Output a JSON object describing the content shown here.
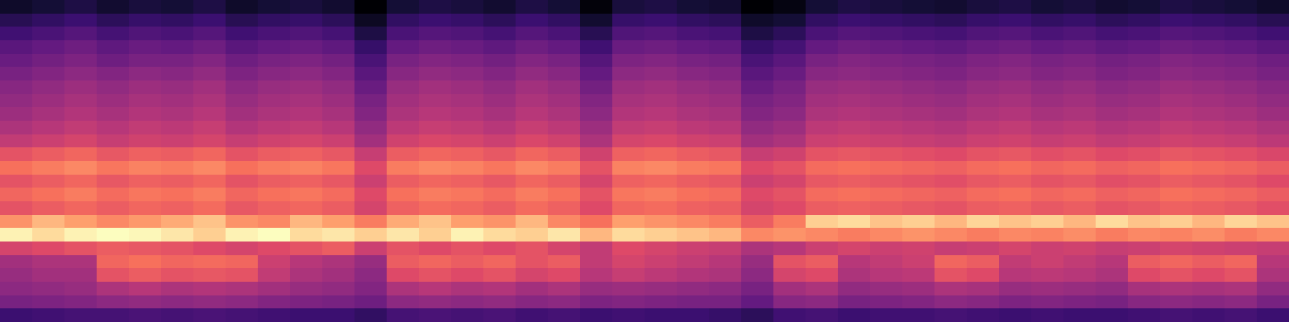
{
  "chart_data": {
    "type": "heatmap",
    "tick_labels": false,
    "cells": [
      [
        28,
        29,
        30,
        30,
        31,
        30,
        31,
        30,
        29,
        28,
        28,
        26,
        30,
        31,
        30,
        31,
        29,
        30,
        28,
        29,
        28,
        28,
        27,
        25,
        29,
        30,
        28,
        29,
        29,
        30,
        29,
        28,
        29,
        28,
        28,
        29,
        30,
        29,
        30,
        28
      ],
      [
        40,
        41,
        42,
        44,
        45,
        44,
        45,
        44,
        42,
        41,
        40,
        38,
        44,
        45,
        44,
        45,
        43,
        44,
        41,
        42,
        41,
        40,
        40,
        36,
        43,
        44,
        40,
        41,
        42,
        44,
        43,
        41,
        42,
        41,
        40,
        43,
        44,
        43,
        44,
        40
      ],
      [
        44,
        45,
        46,
        50,
        52,
        50,
        51,
        50,
        48,
        46,
        45,
        42,
        50,
        52,
        50,
        51,
        48,
        50,
        46,
        47,
        46,
        45,
        44,
        40,
        48,
        50,
        45,
        46,
        47,
        50,
        49,
        46,
        47,
        46,
        45,
        49,
        50,
        49,
        50,
        45
      ],
      [
        46,
        48,
        48,
        62,
        64,
        62,
        63,
        62,
        54,
        50,
        48,
        44,
        60,
        62,
        60,
        62,
        58,
        60,
        52,
        55,
        53,
        51,
        50,
        44,
        58,
        60,
        50,
        52,
        53,
        62,
        60,
        52,
        53,
        52,
        50,
        60,
        62,
        60,
        62,
        50
      ],
      [
        48,
        50,
        50,
        66,
        68,
        66,
        67,
        66,
        56,
        52,
        50,
        46,
        64,
        66,
        64,
        66,
        62,
        64,
        54,
        58,
        56,
        54,
        52,
        46,
        62,
        64,
        52,
        54,
        56,
        66,
        64,
        54,
        56,
        54,
        52,
        64,
        66,
        64,
        66,
        52
      ],
      [
        58,
        60,
        62,
        64,
        63,
        62,
        60,
        58,
        60,
        62,
        64,
        56,
        62,
        60,
        62,
        60,
        62,
        58,
        54,
        60,
        58,
        56,
        55,
        50,
        52,
        56,
        58,
        56,
        57,
        55,
        56,
        58,
        56,
        57,
        55,
        56,
        58,
        57,
        56,
        55
      ],
      [
        90,
        86,
        90,
        92,
        91,
        88,
        84,
        90,
        92,
        86,
        88,
        84,
        88,
        84,
        90,
        86,
        84,
        88,
        80,
        86,
        84,
        82,
        80,
        72,
        74,
        72,
        70,
        72,
        74,
        72,
        70,
        72,
        71,
        73,
        70,
        72,
        71,
        73,
        70,
        72
      ],
      [
        74,
        80,
        76,
        72,
        75,
        78,
        82,
        74,
        72,
        80,
        76,
        70,
        78,
        82,
        76,
        74,
        80,
        72,
        68,
        76,
        74,
        72,
        70,
        64,
        70,
        84,
        86,
        82,
        84,
        80,
        85,
        82,
        84,
        80,
        86,
        82,
        84,
        80,
        85,
        82
      ],
      [
        62,
        64,
        66,
        64,
        66,
        65,
        67,
        63,
        65,
        66,
        64,
        58,
        65,
        67,
        66,
        64,
        67,
        65,
        60,
        66,
        67,
        65,
        64,
        58,
        60,
        64,
        65,
        64,
        63,
        62,
        64,
        65,
        63,
        64,
        62,
        63,
        65,
        64,
        63,
        61
      ],
      [
        66,
        68,
        70,
        67,
        69,
        68,
        70,
        66,
        68,
        69,
        67,
        60,
        68,
        70,
        69,
        67,
        70,
        68,
        62,
        69,
        70,
        68,
        67,
        60,
        62,
        67,
        68,
        67,
        66,
        65,
        67,
        68,
        66,
        67,
        65,
        66,
        68,
        67,
        66,
        64
      ],
      [
        62,
        64,
        66,
        63,
        65,
        64,
        66,
        62,
        64,
        65,
        63,
        56,
        64,
        66,
        65,
        63,
        66,
        64,
        58,
        65,
        66,
        64,
        63,
        56,
        58,
        63,
        64,
        63,
        62,
        61,
        63,
        64,
        62,
        63,
        61,
        62,
        64,
        63,
        62,
        60
      ],
      [
        68,
        70,
        72,
        69,
        71,
        70,
        72,
        68,
        70,
        71,
        69,
        60,
        70,
        72,
        71,
        69,
        72,
        70,
        62,
        71,
        72,
        70,
        69,
        60,
        62,
        67,
        68,
        67,
        66,
        65,
        67,
        68,
        66,
        67,
        65,
        66,
        68,
        67,
        66,
        64
      ],
      [
        62,
        64,
        66,
        63,
        65,
        64,
        66,
        62,
        64,
        65,
        63,
        55,
        64,
        66,
        65,
        63,
        66,
        64,
        57,
        65,
        66,
        64,
        63,
        55,
        57,
        62,
        63,
        62,
        61,
        60,
        62,
        63,
        61,
        62,
        60,
        61,
        63,
        62,
        61,
        59
      ],
      [
        54,
        56,
        58,
        55,
        57,
        56,
        58,
        55,
        57,
        58,
        56,
        48,
        57,
        59,
        58,
        56,
        59,
        57,
        50,
        58,
        59,
        57,
        56,
        48,
        50,
        56,
        57,
        56,
        55,
        54,
        56,
        57,
        55,
        56,
        54,
        55,
        57,
        56,
        55,
        53
      ],
      [
        50,
        52,
        54,
        52,
        54,
        53,
        55,
        51,
        53,
        54,
        52,
        45,
        53,
        55,
        54,
        52,
        55,
        53,
        47,
        54,
        55,
        53,
        52,
        45,
        47,
        53,
        54,
        53,
        52,
        51,
        53,
        54,
        52,
        53,
        51,
        52,
        54,
        53,
        52,
        50
      ],
      [
        47,
        49,
        51,
        49,
        51,
        50,
        52,
        48,
        50,
        51,
        49,
        42,
        50,
        52,
        51,
        49,
        52,
        50,
        44,
        51,
        52,
        50,
        49,
        42,
        44,
        50,
        51,
        50,
        49,
        48,
        50,
        51,
        49,
        50,
        48,
        49,
        51,
        50,
        49,
        47
      ],
      [
        45,
        47,
        49,
        47,
        49,
        48,
        50,
        46,
        48,
        49,
        47,
        40,
        48,
        50,
        49,
        47,
        50,
        48,
        42,
        49,
        50,
        48,
        47,
        40,
        42,
        48,
        49,
        48,
        47,
        46,
        48,
        49,
        47,
        48,
        46,
        47,
        49,
        48,
        47,
        45
      ],
      [
        43,
        45,
        47,
        45,
        47,
        46,
        48,
        44,
        46,
        47,
        45,
        37,
        46,
        48,
        47,
        45,
        48,
        46,
        39,
        47,
        48,
        46,
        45,
        37,
        40,
        46,
        47,
        46,
        45,
        44,
        46,
        47,
        45,
        46,
        44,
        45,
        47,
        46,
        45,
        43
      ],
      [
        40,
        42,
        44,
        42,
        44,
        43,
        45,
        41,
        43,
        44,
        42,
        34,
        43,
        45,
        44,
        42,
        45,
        43,
        36,
        44,
        45,
        43,
        42,
        34,
        37,
        43,
        44,
        43,
        42,
        41,
        43,
        44,
        42,
        43,
        41,
        42,
        44,
        43,
        42,
        40
      ],
      [
        37,
        39,
        41,
        38,
        40,
        40,
        42,
        38,
        40,
        41,
        39,
        31,
        40,
        42,
        41,
        39,
        42,
        40,
        33,
        41,
        42,
        40,
        39,
        31,
        34,
        40,
        42,
        41,
        40,
        39,
        41,
        42,
        40,
        41,
        39,
        40,
        42,
        41,
        40,
        38
      ],
      [
        34,
        36,
        38,
        35,
        37,
        36,
        38,
        34,
        36,
        37,
        35,
        27,
        36,
        38,
        37,
        35,
        38,
        36,
        29,
        37,
        38,
        36,
        35,
        27,
        30,
        36,
        38,
        37,
        36,
        35,
        37,
        38,
        36,
        37,
        35,
        36,
        38,
        37,
        36,
        34
      ],
      [
        29,
        31,
        33,
        30,
        32,
        31,
        33,
        29,
        31,
        32,
        30,
        22,
        31,
        33,
        32,
        30,
        33,
        31,
        24,
        32,
        33,
        31,
        30,
        22,
        25,
        31,
        33,
        32,
        31,
        30,
        32,
        33,
        31,
        32,
        30,
        31,
        33,
        32,
        31,
        29
      ],
      [
        24,
        26,
        28,
        25,
        27,
        26,
        28,
        24,
        26,
        27,
        25,
        17,
        26,
        28,
        27,
        25,
        28,
        26,
        19,
        27,
        28,
        26,
        25,
        18,
        20,
        26,
        28,
        27,
        26,
        25,
        27,
        28,
        26,
        27,
        25,
        26,
        28,
        27,
        26,
        24
      ],
      [
        18,
        20,
        22,
        19,
        21,
        20,
        22,
        18,
        20,
        21,
        19,
        12,
        20,
        22,
        21,
        19,
        22,
        20,
        13,
        21,
        22,
        20,
        19,
        12,
        14,
        20,
        22,
        21,
        20,
        19,
        21,
        22,
        20,
        21,
        19,
        20,
        22,
        21,
        20,
        18
      ]
    ]
  }
}
